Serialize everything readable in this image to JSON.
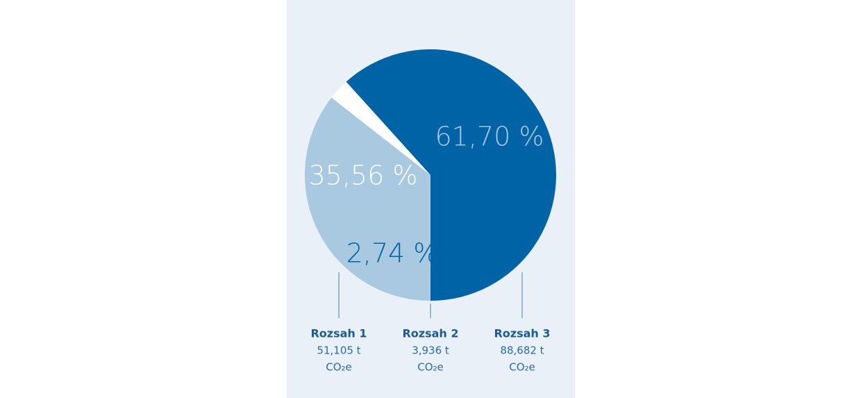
{
  "chart_data": {
    "type": "pie",
    "categories": [
      "Rozsah 1",
      "Rozsah 2",
      "Rozsah 3"
    ],
    "values": [
      35.56,
      2.74,
      61.7
    ],
    "value_labels": [
      "35,56 %",
      "2,74 %",
      "61,70 %"
    ],
    "amounts": [
      "51,105 t",
      "3,936 t",
      "88,682 t"
    ],
    "unit": "CO₂e",
    "colors": [
      "#a9c9e0",
      "#ffffff",
      "#0063a5"
    ],
    "label_colors": [
      "#ffffff",
      "#0063a5",
      "#a9c9e0"
    ]
  }
}
